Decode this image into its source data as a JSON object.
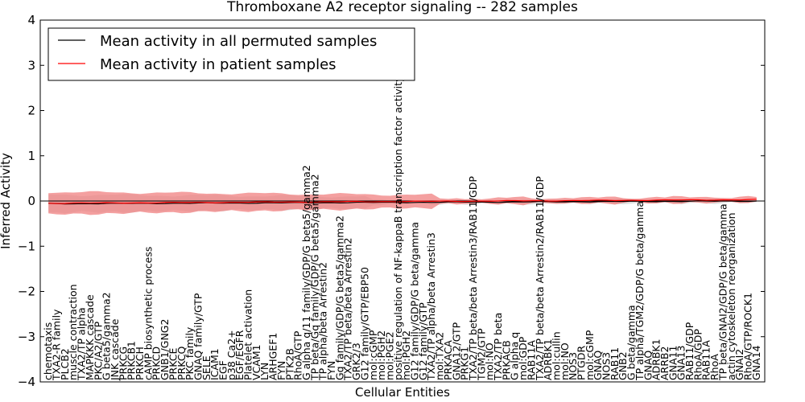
{
  "chart_data": {
    "type": "line",
    "title": "Thromboxane A2 receptor signaling -- 282 samples",
    "xlabel": "Cellular Entities",
    "ylabel": "Inferred Activity",
    "ylim": [
      -4,
      4
    ],
    "yticks": [
      -4,
      -3,
      -2,
      -1,
      0,
      1,
      2,
      3,
      4
    ],
    "ytick_labels": [
      "−4",
      "−3",
      "−2",
      "−1",
      "0",
      "1",
      "2",
      "3",
      "4"
    ],
    "legend_position": "top-left",
    "categories": [
      "chemotaxis",
      "TXA2-R family",
      "PLCB2",
      "muscle contraction",
      "TXA2/TP alpha",
      "MAPKKK cascade",
      "PKC/A2/GTP",
      "G beta5/gamma2",
      "JNK cascade",
      "PRKCG",
      "PRKCB1",
      "PRKCH",
      "cAMP biosynthetic process",
      "PRKCD",
      "GNB1/GNG2",
      "PRKCE",
      "PRKCQ",
      "PKC family",
      "GNAQ family/GTP",
      "SELE",
      "ICAM1",
      "EGF",
      "p38 Ca2+",
      "EGF/EGFR",
      "Platelet activation",
      "VCAM1",
      "LYN",
      "ARHGEF1",
      "FYN",
      "PTK2B",
      "RhoA/GTP",
      "G alpha q/11 family/GDP/G beta5/gamma2",
      "TP beta/Gq family/GDP/G beta5/gamma2",
      "TP alpha/beta Arrestin2",
      "FYN",
      "Gq family/GDP/G beta5/gamma2",
      "TXA2/TP beta/beta Arrestin2",
      "GRK2/3",
      "G12 family/GTP/EBP50",
      "mol:cGMP",
      "mol:PGH2",
      "mol:PGE2",
      "positive regulation of NF-kappaB transcription factor activity",
      "mol:PGH2",
      "G12 family/GDP/G beta/gamma",
      "G12 family/GTP",
      "TXA2/TP alpha/beta Arrestin3",
      "mol:TXA2",
      "PRKACA",
      "GNA12/GTP",
      "PRKG1",
      "TXA2/TP beta/beta Arrestin3/RAB11/GDP",
      "TGM2/GTP",
      "mol:NO",
      "TXA2/TP beta",
      "PRKACB",
      "G alpha q",
      "mol:GDP",
      "RAB11A",
      "TXA2/TP beta/beta Arrestin2/RAB11/GDP",
      "ADRBK1",
      "mol:cullin",
      "mol:NO",
      "NOS3",
      "PTGDR",
      "mol:cGMP",
      "GNAQ",
      "NOS3",
      "RAB11",
      "GNB2",
      "G beta/gamma",
      "TP alpha/TGM2/GDP/G beta/gamma",
      "GNAQ",
      "ADRBK1",
      "ARRB2",
      "GNA11",
      "GNA13",
      "RAB11/GDP",
      "RhoA/GDP",
      "RAB11A",
      "RhoA",
      "TP beta/GNAI2/GDP/G beta/gamma",
      "actin cytoskeleton reorganization",
      "GNAI2",
      "RhoA/GTP/ROCK1",
      "GNA14"
    ],
    "series": [
      {
        "name": "Mean activity in all permuted samples",
        "color": "#000000",
        "band_color": "#c8c8c8",
        "y_start": -0.06,
        "y_end": 0.0,
        "band_halfwidth": [
          0.05,
          0.2
        ]
      },
      {
        "name": "Mean activity in patient samples",
        "color": "#ff0000",
        "band_color": "#f08080",
        "y_start": -0.05,
        "y_end": 0.03,
        "band_halfwidth": [
          0.05,
          0.25
        ]
      }
    ]
  }
}
